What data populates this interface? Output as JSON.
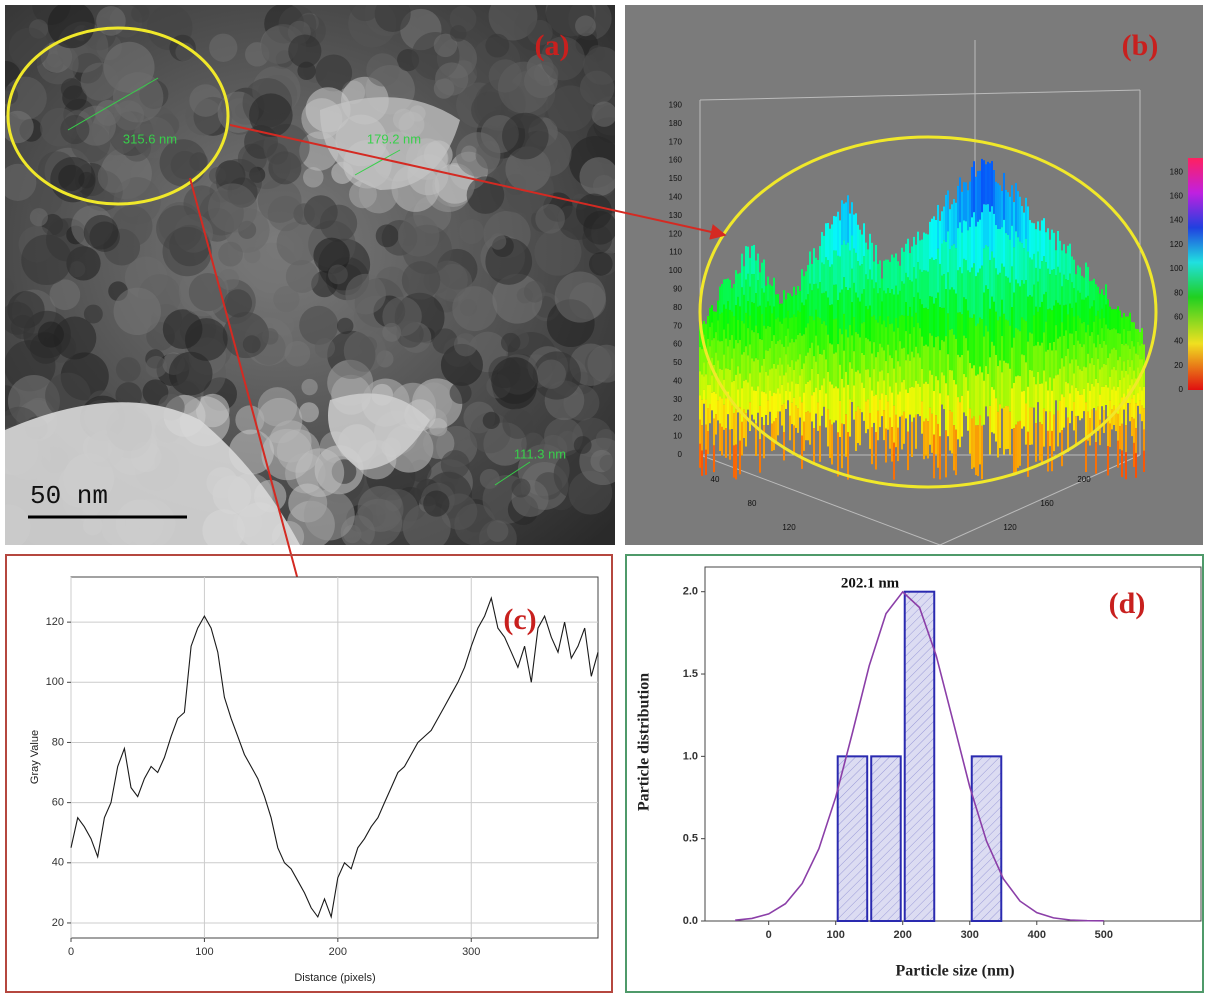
{
  "images": {
    "a": {
      "label": "(a)",
      "measurements": [
        "315.6 nm",
        "179.2 nm",
        "111.3 nm"
      ],
      "scale_bar": "50 nm"
    },
    "b": {
      "label": "(b)",
      "zticks": [
        0,
        10,
        20,
        30,
        40,
        50,
        60,
        70,
        80,
        90,
        100,
        110,
        120,
        130,
        140,
        150,
        160,
        170,
        180,
        190
      ],
      "colorbar_ticks": [
        0,
        20,
        40,
        60,
        80,
        100,
        120,
        140,
        160,
        180
      ],
      "xticks": [
        40,
        80,
        120
      ],
      "yticks": [
        120,
        160,
        200
      ]
    }
  },
  "chart_data": [
    {
      "type": "line",
      "annotation": "(c)",
      "x_label": "Distance (pixels)",
      "y_label": "Gray Value",
      "color": "#1a1a1a",
      "grid": true,
      "x": [
        0,
        5,
        10,
        15,
        20,
        25,
        30,
        35,
        40,
        45,
        50,
        55,
        60,
        65,
        70,
        75,
        80,
        85,
        90,
        95,
        100,
        105,
        110,
        115,
        120,
        125,
        130,
        135,
        140,
        145,
        150,
        155,
        160,
        165,
        170,
        175,
        180,
        185,
        190,
        195,
        200,
        205,
        210,
        215,
        220,
        225,
        230,
        235,
        240,
        245,
        250,
        255,
        260,
        265,
        270,
        275,
        280,
        285,
        290,
        295,
        300,
        305,
        310,
        315,
        320,
        325,
        330,
        335,
        340,
        345,
        350,
        355,
        360,
        365,
        370,
        375,
        380,
        385,
        390,
        395
      ],
      "values": [
        45,
        55,
        52,
        48,
        42,
        55,
        60,
        72,
        78,
        65,
        62,
        68,
        72,
        70,
        75,
        82,
        88,
        90,
        112,
        118,
        122,
        118,
        110,
        95,
        88,
        82,
        76,
        72,
        68,
        62,
        55,
        45,
        40,
        38,
        34,
        30,
        25,
        22,
        28,
        22,
        35,
        40,
        38,
        45,
        48,
        52,
        55,
        60,
        65,
        70,
        72,
        76,
        80,
        82,
        84,
        88,
        92,
        96,
        100,
        105,
        112,
        118,
        122,
        128,
        118,
        115,
        110,
        105,
        112,
        100,
        118,
        122,
        115,
        110,
        120,
        108,
        112,
        118,
        102,
        110
      ],
      "xlim": [
        0,
        395
      ],
      "ylim": [
        15,
        135
      ],
      "xticks": [
        0,
        100,
        200,
        300
      ],
      "yticks": [
        20,
        40,
        60,
        80,
        100,
        120
      ]
    },
    {
      "type": "histogram",
      "annotation": "(d)",
      "peak_label": "202.1 nm",
      "x_label": "Particle size (nm)",
      "y_label": "Particle distribution",
      "bins": [
        100,
        150,
        200,
        250,
        300,
        350
      ],
      "counts": [
        1,
        1,
        2,
        0,
        1
      ],
      "color": "#2a2ab0",
      "fit": {
        "color": "#8b3fa8",
        "x": [
          -50,
          -25,
          0,
          25,
          50,
          75,
          100,
          125,
          150,
          175,
          200,
          225,
          250,
          275,
          300,
          325,
          350,
          375,
          400,
          425,
          450,
          475,
          500
        ],
        "values": [
          0.005,
          0.016,
          0.043,
          0.105,
          0.228,
          0.439,
          0.752,
          1.145,
          1.55,
          1.867,
          1.999,
          1.904,
          1.612,
          1.215,
          0.814,
          0.485,
          0.257,
          0.121,
          0.051,
          0.019,
          0.006,
          0.002,
          0.001
        ]
      },
      "xlim": [
        -95,
        645
      ],
      "ylim": [
        0,
        2.15
      ],
      "xticks": [
        0,
        100,
        200,
        300,
        400,
        500
      ],
      "yticks": [
        {
          "value": 0,
          "label": "0.0"
        },
        0.5,
        {
          "value": 1,
          "label": "1.0"
        },
        1.5,
        {
          "value": 2,
          "label": "2.0"
        }
      ]
    }
  ]
}
